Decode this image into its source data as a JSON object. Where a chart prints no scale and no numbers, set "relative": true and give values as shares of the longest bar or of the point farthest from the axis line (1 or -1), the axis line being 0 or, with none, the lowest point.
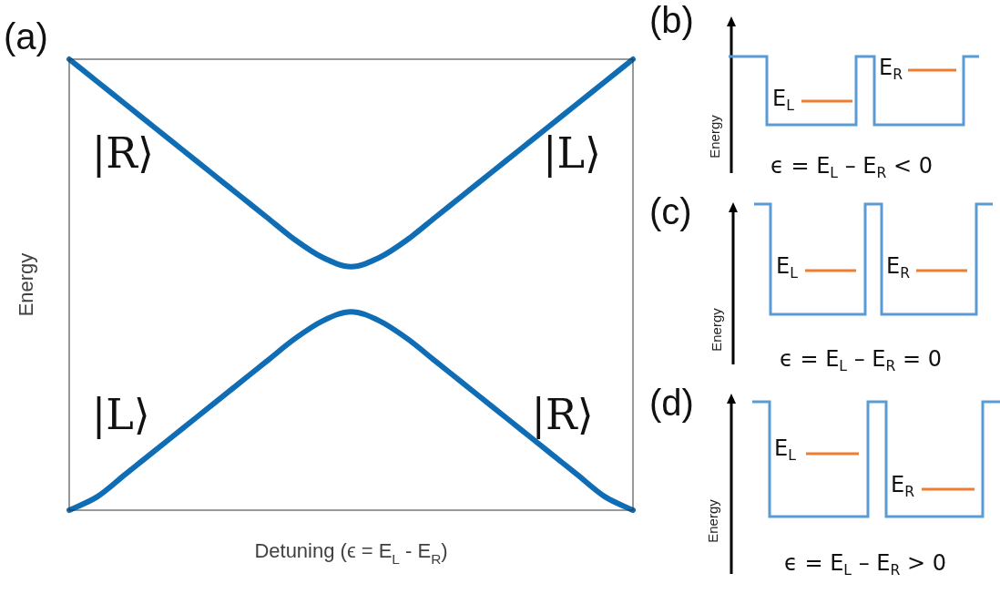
{
  "chart_data": [
    {
      "type": "line",
      "title": "(a)",
      "xlabel": "Detuning (ϵ = E$_{L}$ - E$_{R}$)",
      "ylabel": "Energy",
      "relative": true,
      "legend": false,
      "grid": false,
      "marker": "none",
      "line_style": "solid",
      "categories": [
        null,
        null,
        null,
        null,
        null,
        null,
        null,
        null,
        null,
        null,
        null,
        null,
        null,
        null,
        null,
        null,
        null,
        null,
        null,
        null,
        null
      ],
      "series": [
        {
          "color": "#0f6db5",
          "values": [
            1.0,
            0.95,
            0.9,
            0.85,
            0.8,
            0.75,
            0.7,
            0.65,
            0.6,
            0.56,
            0.54,
            0.56,
            0.6,
            0.65,
            0.7,
            0.75,
            0.8,
            0.85,
            0.9,
            0.95,
            1.0
          ]
        },
        {
          "color": "#0f6db5",
          "values": [
            0.0,
            0.03,
            0.08,
            0.13,
            0.18,
            0.23,
            0.28,
            0.33,
            0.38,
            0.42,
            0.44,
            0.42,
            0.38,
            0.33,
            0.28,
            0.23,
            0.18,
            0.13,
            0.08,
            0.03,
            0.0
          ]
        }
      ],
      "annotations": [
        "|R⟩",
        "|L⟩",
        "|L⟩",
        "|R⟩"
      ]
    },
    {
      "type": "other",
      "title": "(b)",
      "ylabel": "Energy",
      "annotations": [
        "E$_{L}$",
        "E$_{R}$",
        "ϵ = E$_{L}$ – E$_{R}$ < 0"
      ]
    },
    {
      "type": "other",
      "title": "(c)",
      "ylabel": "Energy",
      "annotations": [
        "E$_{L}$",
        "E$_{R}$",
        "ϵ = E$_{L}$ – E$_{R}$ = 0"
      ]
    },
    {
      "type": "other",
      "title": "(d)",
      "ylabel": "Energy",
      "annotations": [
        "E$_{L}$",
        "E$_{R}$",
        "ϵ = E$_{L}$ – E$_{R}$ > 0"
      ]
    }
  ]
}
